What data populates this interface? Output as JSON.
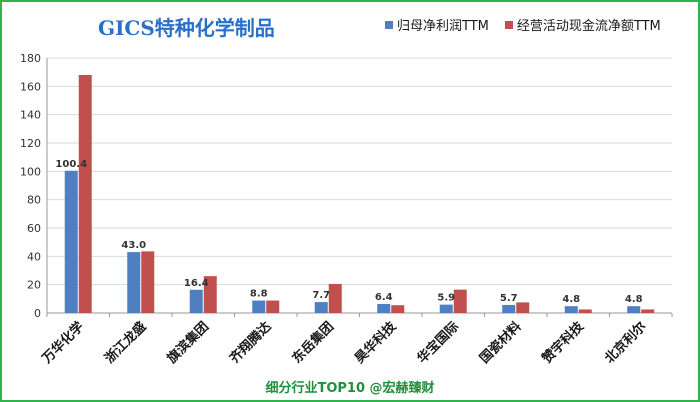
{
  "chart_data": {
    "type": "bar",
    "title": "GICS特种化学制品",
    "categories": [
      "万华化学",
      "浙江龙盛",
      "旗滨集团",
      "齐翔腾达",
      "东岳集团",
      "昊华科技",
      "华宝国际",
      "国瓷材料",
      "赞宇科技",
      "北京利尔"
    ],
    "series": [
      {
        "name": "归母净利润TTM",
        "color": "#4f7fc0",
        "values": [
          100.4,
          43.0,
          16.4,
          8.8,
          7.7,
          6.4,
          5.9,
          5.7,
          4.8,
          4.8
        ]
      },
      {
        "name": "经营活动现金流净额TTM",
        "color": "#c0504d",
        "values": [
          168,
          43.5,
          26,
          8.8,
          20.5,
          5.5,
          16.5,
          7.5,
          2.5,
          2.5
        ]
      }
    ],
    "data_labels": [
      "100.4",
      "43.0",
      "16.4",
      "8.8",
      "7.7",
      "6.4",
      "5.9",
      "5.7",
      "4.8",
      "4.8"
    ],
    "ylim": [
      0,
      180
    ],
    "yticks": [
      0,
      20,
      40,
      60,
      80,
      100,
      120,
      140,
      160,
      180
    ],
    "grid": true,
    "legend": "top-right"
  },
  "footer": "细分行业TOP10 @宏赫臻财",
  "frame_color": "#2fb34a"
}
